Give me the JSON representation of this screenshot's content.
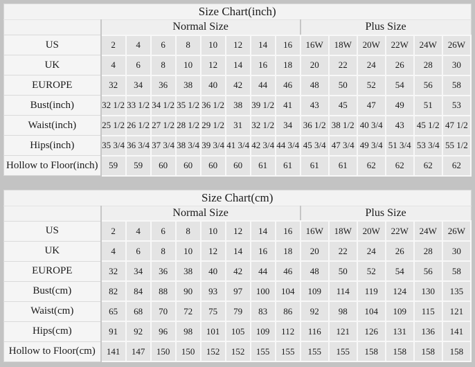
{
  "colors": {
    "page_background": "#c3c3c3",
    "cell_background": "#e4e4e4",
    "label_background": "#f5f5f5",
    "header_background": "#f3f3f3",
    "grid_light": "#f8f8f8",
    "grid_dark": "#c6c6c6",
    "text": "#1a1a1a"
  },
  "chart_data": [
    {
      "type": "table",
      "title": "Size Chart(inch)",
      "column_groups": [
        {
          "label": "Normal Size",
          "span": 8
        },
        {
          "label": "Plus Size",
          "span": 6
        }
      ],
      "rows": [
        {
          "label": "US",
          "values": [
            "2",
            "4",
            "6",
            "8",
            "10",
            "12",
            "14",
            "16",
            "16W",
            "18W",
            "20W",
            "22W",
            "24W",
            "26W"
          ]
        },
        {
          "label": "UK",
          "values": [
            "4",
            "6",
            "8",
            "10",
            "12",
            "14",
            "16",
            "18",
            "20",
            "22",
            "24",
            "26",
            "28",
            "30"
          ]
        },
        {
          "label": "EUROPE",
          "values": [
            "32",
            "34",
            "36",
            "38",
            "40",
            "42",
            "44",
            "46",
            "48",
            "50",
            "52",
            "54",
            "56",
            "58"
          ]
        },
        {
          "label": "Bust(inch)",
          "values": [
            "32 1/2",
            "33 1/2",
            "34 1/2",
            "35 1/2",
            "36 1/2",
            "38",
            "39 1/2",
            "41",
            "43",
            "45",
            "47",
            "49",
            "51",
            "53"
          ]
        },
        {
          "label": "Waist(inch)",
          "values": [
            "25 1/2",
            "26 1/2",
            "27 1/2",
            "28 1/2",
            "29 1/2",
            "31",
            "32 1/2",
            "34",
            "36 1/2",
            "38 1/2",
            "40 3/4",
            "43",
            "45 1/2",
            "47 1/2"
          ]
        },
        {
          "label": "Hips(inch)",
          "values": [
            "35 3/4",
            "36 3/4",
            "37 3/4",
            "38 3/4",
            "39 3/4",
            "41 3/4",
            "42 3/4",
            "44 3/4",
            "45 3/4",
            "47 3/4",
            "49 3/4",
            "51 3/4",
            "53 3/4",
            "55 1/2"
          ]
        },
        {
          "label": "Hollow to Floor(inch)",
          "values": [
            "59",
            "59",
            "60",
            "60",
            "60",
            "60",
            "61",
            "61",
            "61",
            "61",
            "62",
            "62",
            "62",
            "62"
          ]
        }
      ]
    },
    {
      "type": "table",
      "title": "Size Chart(cm)",
      "column_groups": [
        {
          "label": "Normal Size",
          "span": 8
        },
        {
          "label": "Plus Size",
          "span": 6
        }
      ],
      "rows": [
        {
          "label": "US",
          "values": [
            "2",
            "4",
            "6",
            "8",
            "10",
            "12",
            "14",
            "16",
            "16W",
            "18W",
            "20W",
            "22W",
            "24W",
            "26W"
          ]
        },
        {
          "label": "UK",
          "values": [
            "4",
            "6",
            "8",
            "10",
            "12",
            "14",
            "16",
            "18",
            "20",
            "22",
            "24",
            "26",
            "28",
            "30"
          ]
        },
        {
          "label": "EUROPE",
          "values": [
            "32",
            "34",
            "36",
            "38",
            "40",
            "42",
            "44",
            "46",
            "48",
            "50",
            "52",
            "54",
            "56",
            "58"
          ]
        },
        {
          "label": "Bust(cm)",
          "values": [
            "82",
            "84",
            "88",
            "90",
            "93",
            "97",
            "100",
            "104",
            "109",
            "114",
            "119",
            "124",
            "130",
            "135"
          ]
        },
        {
          "label": "Waist(cm)",
          "values": [
            "65",
            "68",
            "70",
            "72",
            "75",
            "79",
            "83",
            "86",
            "92",
            "98",
            "104",
            "109",
            "115",
            "121"
          ]
        },
        {
          "label": "Hips(cm)",
          "values": [
            "91",
            "92",
            "96",
            "98",
            "101",
            "105",
            "109",
            "112",
            "116",
            "121",
            "126",
            "131",
            "136",
            "141"
          ]
        },
        {
          "label": "Hollow to Floor(cm)",
          "values": [
            "141",
            "147",
            "150",
            "150",
            "152",
            "152",
            "155",
            "155",
            "155",
            "155",
            "158",
            "158",
            "158",
            "158"
          ]
        }
      ]
    }
  ]
}
